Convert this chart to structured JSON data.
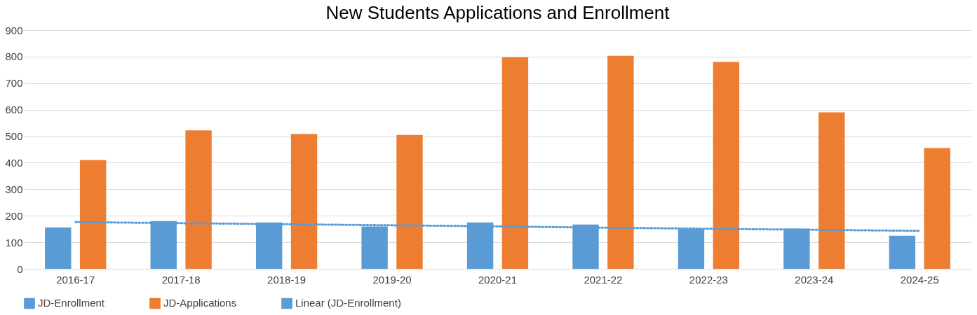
{
  "chart_data": {
    "type": "bar",
    "title": "New Students Applications and Enrollment",
    "categories": [
      "2016-17",
      "2017-18",
      "2018-19",
      "2019-20",
      "2020-21",
      "2021-22",
      "2022-23",
      "2023-24",
      "2024-25"
    ],
    "series": [
      {
        "name": "JD-Enrollment",
        "color": "#5b9bd5",
        "values": [
          156,
          180,
          175,
          160,
          175,
          167,
          150,
          152,
          125
        ]
      },
      {
        "name": "JD-Applications",
        "color": "#ed7d31",
        "values": [
          410,
          522,
          508,
          505,
          798,
          803,
          780,
          590,
          455
        ]
      },
      {
        "name": "Linear (JD-Enrollment)",
        "type": "line",
        "color": "#5b9bd5",
        "line_style": "dotted",
        "values": [
          176,
          172,
          168,
          164,
          160,
          155,
          151,
          147,
          143
        ]
      }
    ],
    "ylim": [
      0,
      900
    ],
    "yticks": [
      0,
      100,
      200,
      300,
      400,
      500,
      600,
      700,
      800,
      900
    ],
    "grid": "y",
    "legend": "bottom"
  }
}
